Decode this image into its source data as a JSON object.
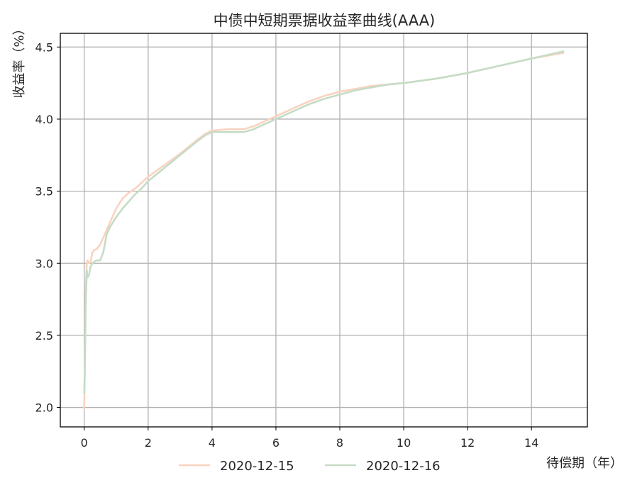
{
  "chart_data": {
    "type": "line",
    "title": "中债中短期票据收益率曲线(AAA)",
    "xlabel": "待偿期（年）",
    "ylabel": "收益率（%）",
    "xlim": [
      -0.75,
      15.75
    ],
    "ylim": [
      1.865,
      4.595
    ],
    "xticks": [
      0,
      2,
      4,
      6,
      8,
      10,
      12,
      14
    ],
    "yticks": [
      2.0,
      2.5,
      3.0,
      3.5,
      4.0,
      4.5
    ],
    "ytick_labels": [
      "2.0",
      "2.5",
      "3.0",
      "3.5",
      "4.0",
      "4.5"
    ],
    "grid": true,
    "legend_position": "bottom-center",
    "series": [
      {
        "name": "2020-12-15",
        "color": "#f9d3bf",
        "x": [
          0,
          0.02,
          0.05,
          0.08,
          0.1,
          0.15,
          0.2,
          0.25,
          0.3,
          0.4,
          0.5,
          0.6,
          0.7,
          0.8,
          1.0,
          1.2,
          1.4,
          1.6,
          1.8,
          2.0,
          2.5,
          3.0,
          3.5,
          3.8,
          4.0,
          4.5,
          5.0,
          5.3,
          5.6,
          6.0,
          6.5,
          7.0,
          7.5,
          8.0,
          8.5,
          9.0,
          9.5,
          10.0,
          11.0,
          12.0,
          13.0,
          14.0,
          15.0
        ],
        "y": [
          1.99,
          2.3,
          2.85,
          3.0,
          3.02,
          3.0,
          3.01,
          3.07,
          3.09,
          3.1,
          3.13,
          3.18,
          3.23,
          3.28,
          3.38,
          3.45,
          3.49,
          3.52,
          3.56,
          3.6,
          3.68,
          3.76,
          3.85,
          3.9,
          3.92,
          3.93,
          3.93,
          3.95,
          3.98,
          4.02,
          4.07,
          4.12,
          4.16,
          4.19,
          4.21,
          4.23,
          4.24,
          4.25,
          4.28,
          4.32,
          4.37,
          4.42,
          4.46
        ]
      },
      {
        "name": "2020-12-16",
        "color": "#c5dcc6",
        "x": [
          0,
          0.02,
          0.05,
          0.08,
          0.1,
          0.15,
          0.2,
          0.3,
          0.4,
          0.5,
          0.6,
          0.7,
          0.8,
          1.0,
          1.2,
          1.4,
          1.6,
          1.8,
          2.0,
          2.5,
          3.0,
          3.5,
          3.8,
          4.0,
          4.5,
          5.0,
          5.3,
          5.6,
          6.0,
          6.5,
          7.0,
          7.5,
          8.0,
          8.5,
          9.0,
          9.5,
          10.0,
          11.0,
          12.0,
          13.0,
          14.0,
          15.0
        ],
        "y": [
          2.1,
          2.3,
          2.75,
          2.95,
          2.9,
          2.92,
          2.98,
          3.01,
          3.02,
          3.02,
          3.08,
          3.2,
          3.25,
          3.32,
          3.38,
          3.43,
          3.48,
          3.52,
          3.57,
          3.66,
          3.75,
          3.84,
          3.89,
          3.91,
          3.91,
          3.91,
          3.93,
          3.96,
          4.0,
          4.05,
          4.1,
          4.14,
          4.17,
          4.2,
          4.22,
          4.24,
          4.25,
          4.28,
          4.32,
          4.37,
          4.42,
          4.47
        ]
      }
    ]
  }
}
